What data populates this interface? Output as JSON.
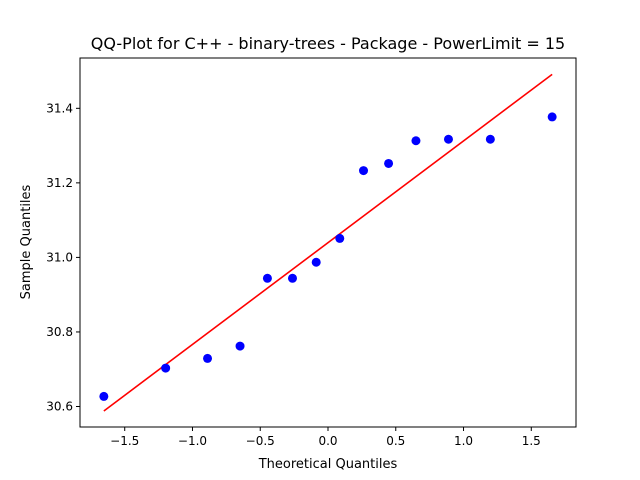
{
  "chart_data": {
    "type": "scatter",
    "title": "QQ-Plot for C++ - binary-trees - Package - PowerLimit = 15",
    "xlabel": "Theoretical Quantiles",
    "ylabel": "Sample Quantiles",
    "xlim": [
      -1.83,
      1.83
    ],
    "ylim": [
      30.545,
      31.535
    ],
    "x_ticks": [
      -1.5,
      -1.0,
      -0.5,
      0.0,
      0.5,
      1.0,
      1.5
    ],
    "x_tick_labels": [
      "−1.5",
      "−1.0",
      "−0.5",
      "0.0",
      "0.5",
      "1.0",
      "1.5"
    ],
    "y_ticks": [
      30.6,
      30.8,
      31.0,
      31.2,
      31.4
    ],
    "y_tick_labels": [
      "30.6",
      "30.8",
      "31.0",
      "31.2",
      "31.4"
    ],
    "series": [
      {
        "name": "sample points",
        "color": "#0000ff",
        "x": [
          -1.654,
          -1.198,
          -0.889,
          -0.649,
          -0.447,
          -0.262,
          -0.087,
          0.087,
          0.262,
          0.447,
          0.649,
          0.889,
          1.198,
          1.654
        ],
        "y": [
          30.627,
          30.703,
          30.729,
          30.762,
          30.944,
          30.944,
          30.987,
          31.051,
          31.233,
          31.252,
          31.313,
          31.317,
          31.317,
          31.377
        ]
      },
      {
        "name": "reference line",
        "color": "#ff0000",
        "x": [
          -1.654,
          1.654
        ],
        "y": [
          30.588,
          31.491
        ]
      }
    ]
  }
}
